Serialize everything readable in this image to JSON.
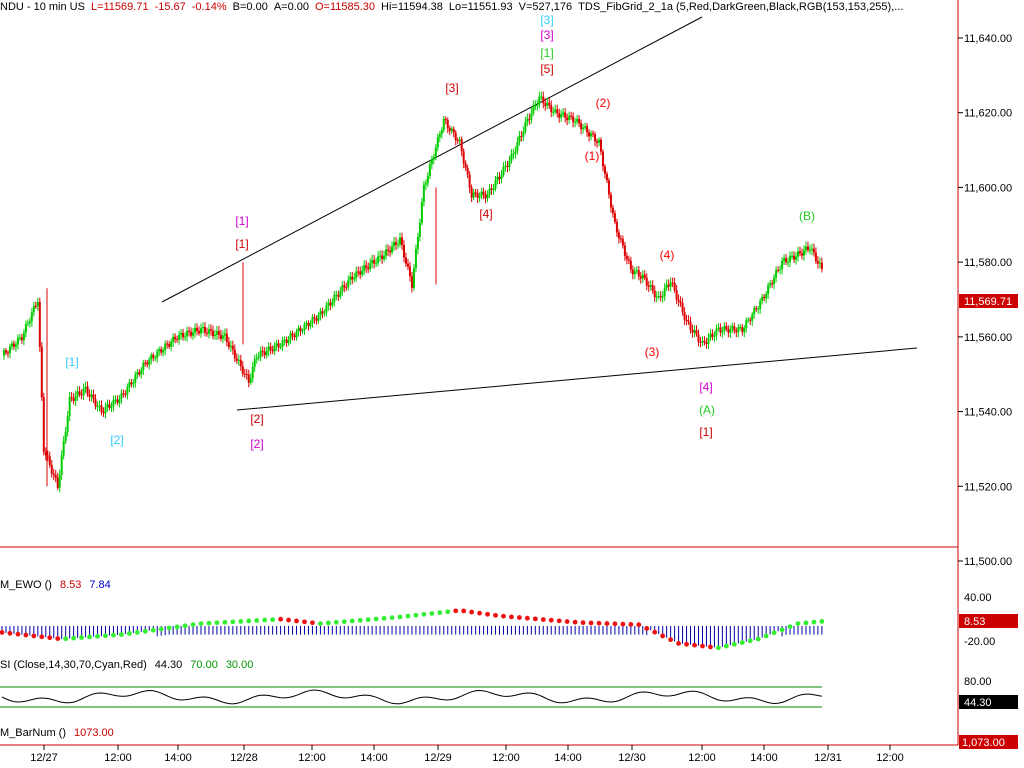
{
  "header": {
    "symbol": "NDU - 10 min  US",
    "last": "L=11569.71",
    "change": "-15.67",
    "change_pct": "-0.14%",
    "bid": "B=0.00",
    "ask": "A=0.00",
    "open": "O=11585.30",
    "high": "Hi=11594.38",
    "low": "Lo=11551.93",
    "volume": "V=527,176",
    "study": "TDS_FibGrid_2_1a (5,Red,DarkGreen,Black,RGB(153,153,255),..."
  },
  "price_axis": {
    "ticks": [
      "11,640.00",
      "11,620.00",
      "11,600.00",
      "11,580.00",
      "11,560.00",
      "11,540.00",
      "11,520.00",
      "11,500.00"
    ],
    "tick_values": [
      11640,
      11620,
      11600,
      11580,
      11560,
      11540,
      11520,
      11500
    ],
    "current_price_label": "11,569.71",
    "current_price": 11569.71
  },
  "time_axis": {
    "labels": [
      "12/27",
      "12:00",
      "14:00",
      "12/28",
      "12:00",
      "14:00",
      "12/29",
      "12:00",
      "14:00",
      "12/30",
      "12:00",
      "14:00",
      "12/31",
      "12:00"
    ]
  },
  "wave_labels": [
    {
      "text": "[1]",
      "color": "#33ccff"
    },
    {
      "text": "[2]",
      "color": "#33ccff"
    },
    {
      "text": "[1]",
      "color": "#cc00cc"
    },
    {
      "text": "[1]",
      "color": "#cc0000"
    },
    {
      "text": "[2]",
      "color": "#cc0000"
    },
    {
      "text": "[2]",
      "color": "#cc00cc"
    },
    {
      "text": "[3]",
      "color": "#cc0000"
    },
    {
      "text": "[4]",
      "color": "#cc0000"
    },
    {
      "text": "[3]",
      "color": "#33ccff"
    },
    {
      "text": "[3]",
      "color": "#cc00cc"
    },
    {
      "text": "[1]",
      "color": "#22cc22"
    },
    {
      "text": "[5]",
      "color": "#cc0000"
    },
    {
      "text": "(2)",
      "color": "#ff0000"
    },
    {
      "text": "(1)",
      "color": "#ff0000"
    },
    {
      "text": "(4)",
      "color": "#ff0000"
    },
    {
      "text": "(3)",
      "color": "#ff0000"
    },
    {
      "text": "(B)",
      "color": "#22cc22"
    },
    {
      "text": "[4]",
      "color": "#cc00cc"
    },
    {
      "text": "(A)",
      "color": "#22cc22"
    },
    {
      "text": "[1]",
      "color": "#cc0000"
    }
  ],
  "ewo": {
    "name": "M_EWO ()",
    "value1": "8.53",
    "value2": "7.84",
    "ticks": [
      "40.00",
      "-20.00"
    ],
    "current_label": "8.53"
  },
  "rsi": {
    "name": "SI (Close,14,30,70,Cyan,Red)",
    "value": "44.30",
    "upper": "70.00",
    "lower": "30.00",
    "ticks": [
      "80.00"
    ],
    "current_label": "44.30"
  },
  "barnum": {
    "name": "M_BarNum ()",
    "value": "1073.00",
    "current_label": "1,073.00"
  },
  "colors": {
    "up": "#00cc00",
    "down": "#dd0000",
    "accent_red": "#cc0000",
    "ewo_blue": "#0000aa",
    "ewo_green": "#33ee33",
    "ewo_red": "#ee1111"
  }
}
